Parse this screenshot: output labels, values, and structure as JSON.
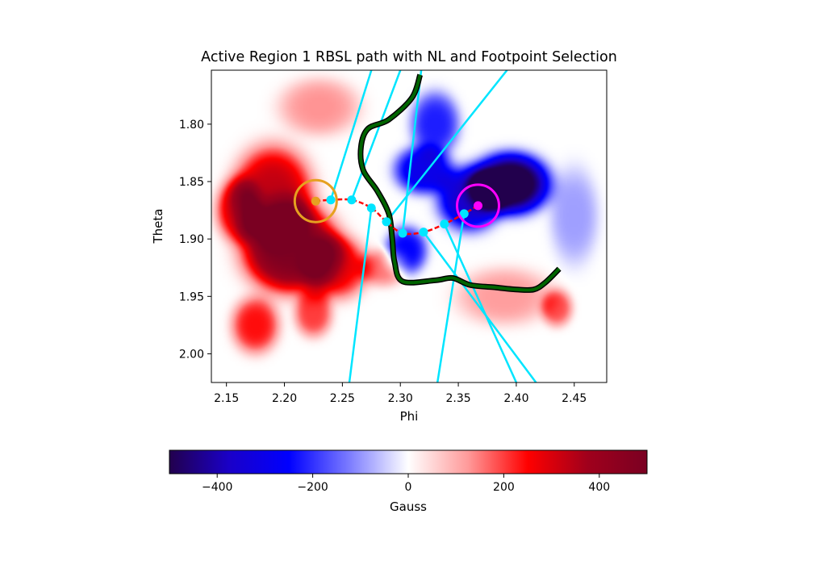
{
  "chart_data": {
    "type": "heatmap",
    "title": "Active Region 1 RBSL path with NL and Footpoint Selection",
    "xlabel": "Phi",
    "ylabel": "Theta",
    "xlim": [
      2.137,
      2.478
    ],
    "ylim": [
      2.025,
      1.753
    ],
    "y_inverted": true,
    "xticks": [
      2.15,
      2.2,
      2.25,
      2.3,
      2.35,
      2.4,
      2.45
    ],
    "xtick_labels": [
      "2.15",
      "2.20",
      "2.25",
      "2.30",
      "2.35",
      "2.40",
      "2.45"
    ],
    "yticks": [
      1.8,
      1.85,
      1.9,
      1.95,
      2.0
    ],
    "ytick_labels": [
      "1.80",
      "1.85",
      "1.90",
      "1.95",
      "2.00"
    ],
    "grid": false,
    "colorbar": {
      "label": "Gauss",
      "vmin": -500,
      "vmax": 500,
      "ticks": [
        -400,
        -200,
        0,
        200,
        400
      ],
      "tick_labels": [
        "−400",
        "−200",
        "0",
        "200",
        "400"
      ],
      "colors": [
        "#22004d",
        "#1a00c8",
        "#0000ff",
        "#7a7aff",
        "#ffffff",
        "#ff9a9a",
        "#ff0000",
        "#a0001c",
        "#7a0022"
      ],
      "orientation": "horizontal",
      "placement": "below"
    },
    "field_blobs": [
      {
        "phi": 2.205,
        "theta": 1.908,
        "value": 480,
        "sphi": 0.03,
        "stheta": 0.028
      },
      {
        "phi": 2.19,
        "theta": 1.86,
        "value": 330,
        "sphi": 0.025,
        "stheta": 0.03
      },
      {
        "phi": 2.16,
        "theta": 1.875,
        "value": 260,
        "sphi": 0.014,
        "stheta": 0.02
      },
      {
        "phi": 2.245,
        "theta": 1.925,
        "value": 260,
        "sphi": 0.02,
        "stheta": 0.02
      },
      {
        "phi": 2.175,
        "theta": 1.975,
        "value": 240,
        "sphi": 0.015,
        "stheta": 0.018
      },
      {
        "phi": 2.225,
        "theta": 1.965,
        "value": 200,
        "sphi": 0.012,
        "stheta": 0.015
      },
      {
        "phi": 2.23,
        "theta": 1.785,
        "value": 130,
        "sphi": 0.025,
        "stheta": 0.018
      },
      {
        "phi": 2.285,
        "theta": 1.925,
        "value": 150,
        "sphi": 0.015,
        "stheta": 0.012
      },
      {
        "phi": 2.435,
        "theta": 1.96,
        "value": 180,
        "sphi": 0.01,
        "stheta": 0.012
      },
      {
        "phi": 2.39,
        "theta": 1.95,
        "value": 120,
        "sphi": 0.03,
        "stheta": 0.018
      },
      {
        "phi": 2.395,
        "theta": 1.852,
        "value": -560,
        "sphi": 0.024,
        "stheta": 0.019
      },
      {
        "phi": 2.36,
        "theta": 1.865,
        "value": -360,
        "sphi": 0.02,
        "stheta": 0.02
      },
      {
        "phi": 2.32,
        "theta": 1.84,
        "value": -300,
        "sphi": 0.018,
        "stheta": 0.015
      },
      {
        "phi": 2.33,
        "theta": 1.8,
        "value": -220,
        "sphi": 0.015,
        "stheta": 0.02
      },
      {
        "phi": 2.305,
        "theta": 1.91,
        "value": -250,
        "sphi": 0.013,
        "stheta": 0.015
      },
      {
        "phi": 2.45,
        "theta": 1.88,
        "value": -90,
        "sphi": 0.015,
        "stheta": 0.03
      }
    ],
    "neutral_line": {
      "color": "#006400",
      "points": [
        [
          2.317,
          1.757
        ],
        [
          2.31,
          1.777
        ],
        [
          2.29,
          1.796
        ],
        [
          2.272,
          1.804
        ],
        [
          2.266,
          1.82
        ],
        [
          2.268,
          1.84
        ],
        [
          2.28,
          1.858
        ],
        [
          2.29,
          1.878
        ],
        [
          2.293,
          1.9
        ],
        [
          2.295,
          1.92
        ],
        [
          2.302,
          1.937
        ],
        [
          2.33,
          1.936
        ],
        [
          2.345,
          1.934
        ],
        [
          2.36,
          1.94
        ],
        [
          2.38,
          1.942
        ],
        [
          2.4,
          1.944
        ],
        [
          2.415,
          1.944
        ],
        [
          2.425,
          1.938
        ],
        [
          2.437,
          1.926
        ]
      ]
    },
    "rbsl_path": {
      "color": "#ff0000",
      "points": [
        [
          2.227,
          1.867
        ],
        [
          2.24,
          1.866
        ],
        [
          2.258,
          1.866
        ],
        [
          2.275,
          1.873
        ],
        [
          2.288,
          1.885
        ],
        [
          2.302,
          1.895
        ],
        [
          2.32,
          1.894
        ],
        [
          2.338,
          1.887
        ],
        [
          2.355,
          1.878
        ],
        [
          2.367,
          1.871
        ]
      ]
    },
    "sample_points": {
      "color": "#00e5ff",
      "points": [
        [
          2.24,
          1.866
        ],
        [
          2.258,
          1.866
        ],
        [
          2.275,
          1.873
        ],
        [
          2.288,
          1.885
        ],
        [
          2.302,
          1.895
        ],
        [
          2.32,
          1.894
        ],
        [
          2.338,
          1.887
        ],
        [
          2.355,
          1.878
        ]
      ]
    },
    "normal_lines": {
      "color": "#00e5ff",
      "segments": [
        [
          [
            2.24,
            1.866
          ],
          [
            2.275,
            1.753
          ]
        ],
        [
          [
            2.258,
            1.866
          ],
          [
            2.3,
            1.753
          ]
        ],
        [
          [
            2.275,
            1.873
          ],
          [
            2.256,
            2.025
          ]
        ],
        [
          [
            2.288,
            1.885
          ],
          [
            2.392,
            1.753
          ]
        ],
        [
          [
            2.302,
            1.895
          ],
          [
            2.318,
            1.753
          ]
        ],
        [
          [
            2.32,
            1.894
          ],
          [
            2.417,
            2.025
          ]
        ],
        [
          [
            2.338,
            1.887
          ],
          [
            2.4,
            2.025
          ]
        ],
        [
          [
            2.355,
            1.878
          ],
          [
            2.332,
            2.025
          ]
        ]
      ]
    },
    "footpoints": [
      {
        "name": "positive",
        "phi": 2.227,
        "theta": 1.867,
        "color": "#e6a020"
      },
      {
        "name": "negative",
        "phi": 2.367,
        "theta": 1.871,
        "color": "#ff00ff"
      }
    ]
  }
}
